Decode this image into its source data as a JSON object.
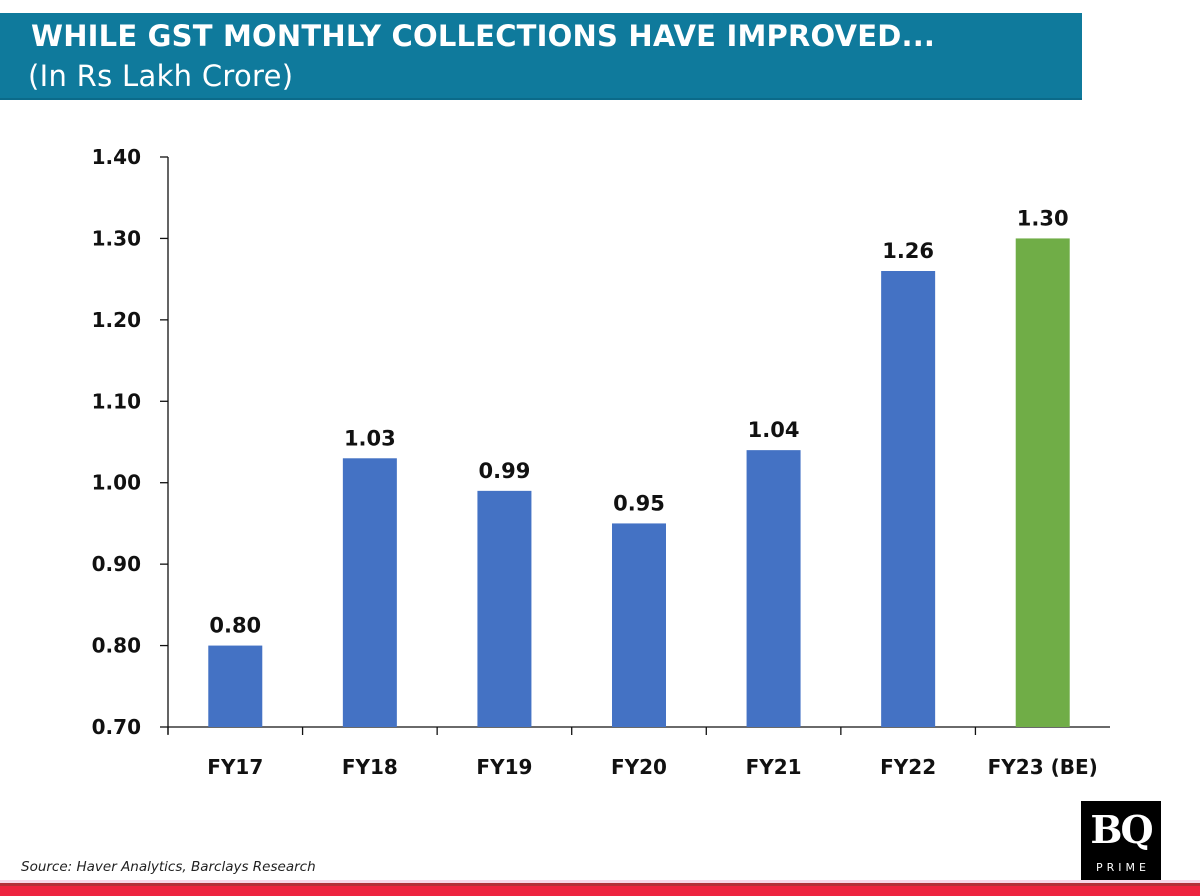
{
  "header": {
    "title": "WHILE GST MONTHLY COLLECTIONS HAVE IMPROVED...",
    "subtitle": "(In Rs Lakh Crore)",
    "background_color": "#0f7a9c"
  },
  "chart_data": {
    "type": "bar",
    "title": "WHILE GST MONTHLY COLLECTIONS HAVE IMPROVED...",
    "subtitle": "(In Rs Lakh Crore)",
    "xlabel": "",
    "ylabel": "",
    "categories": [
      "FY17",
      "FY18",
      "FY19",
      "FY20",
      "FY21",
      "FY22",
      "FY23 (BE)"
    ],
    "values": [
      0.8,
      1.03,
      0.99,
      0.95,
      1.04,
      1.26,
      1.3
    ],
    "data_labels": [
      "0.80",
      "1.03",
      "0.99",
      "0.95",
      "1.04",
      "1.26",
      "1.30"
    ],
    "bar_colors": [
      "#4472c4",
      "#4472c4",
      "#4472c4",
      "#4472c4",
      "#4472c4",
      "#4472c4",
      "#70ad47"
    ],
    "ylim": [
      0.7,
      1.4
    ],
    "yticks": [
      0.7,
      0.8,
      0.9,
      1.0,
      1.1,
      1.2,
      1.3,
      1.4
    ],
    "ytick_labels": [
      "0.70",
      "0.80",
      "0.90",
      "1.00",
      "1.10",
      "1.20",
      "1.30",
      "1.40"
    ],
    "grid": false,
    "legend": "none"
  },
  "footer": {
    "source": "Source: Haver Analytics, Barclays Research",
    "logo_main": "BQ",
    "logo_sub": "PRIME"
  }
}
